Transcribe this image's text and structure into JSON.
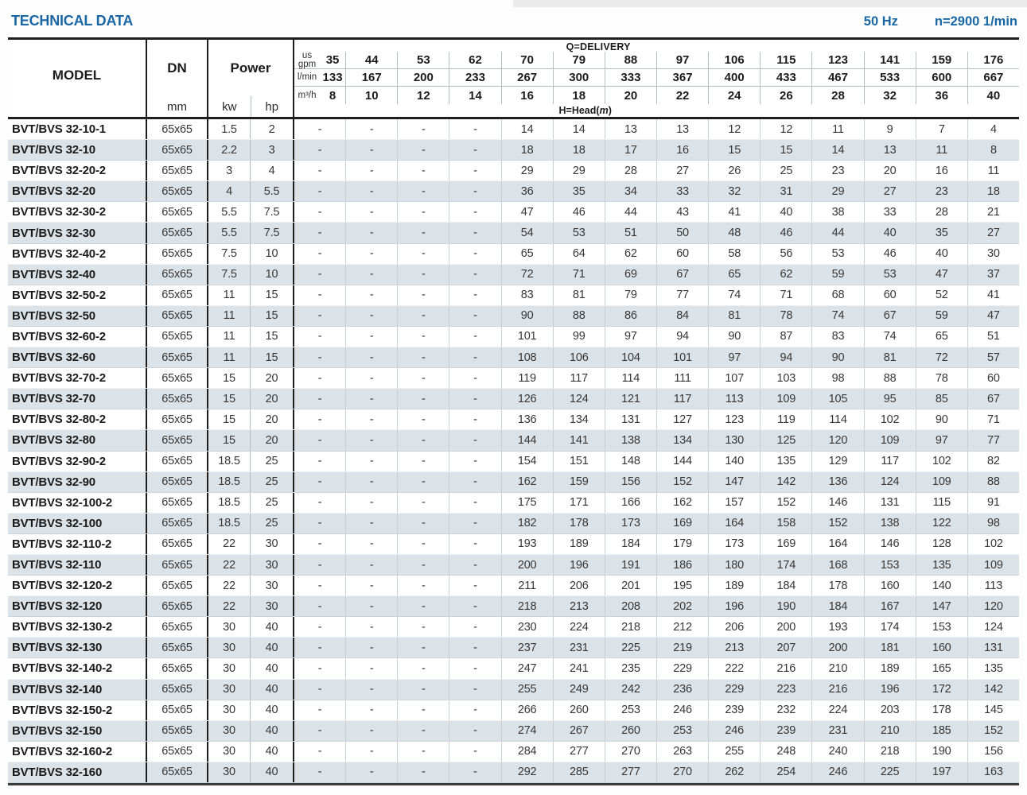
{
  "page": {
    "title": "TECHNICAL DATA",
    "frequency": "50 Hz",
    "speed": "n=2900 1/min"
  },
  "table": {
    "model_header": "MODEL",
    "dn_header": "DN",
    "dn_unit": "mm",
    "power_header": "Power",
    "power_unit_kw": "kw",
    "power_unit_hp": "hp",
    "delivery_label": "Q=DELIVERY",
    "head_label": {
      "pre": "H=Head(",
      "m": "m",
      "post": ")"
    },
    "unit_rows": [
      {
        "unit": "us gpm",
        "values": [
          "35",
          "44",
          "53",
          "62",
          "70",
          "79",
          "88",
          "97",
          "106",
          "115",
          "123",
          "141",
          "159",
          "176"
        ]
      },
      {
        "unit": "l/min",
        "values": [
          "133",
          "167",
          "200",
          "233",
          "267",
          "300",
          "333",
          "367",
          "400",
          "433",
          "467",
          "533",
          "600",
          "667"
        ]
      },
      {
        "unit": "m³/h",
        "values": [
          "8",
          "10",
          "12",
          "14",
          "16",
          "18",
          "20",
          "22",
          "24",
          "26",
          "28",
          "32",
          "36",
          "40"
        ]
      }
    ],
    "rows": [
      {
        "model": "BVT/BVS 32-10-1",
        "dn": "65x65",
        "kw": "1.5",
        "hp": "2",
        "head": [
          "-",
          "-",
          "-",
          "-",
          "14",
          "14",
          "13",
          "13",
          "12",
          "12",
          "11",
          "9",
          "7",
          "4"
        ]
      },
      {
        "model": "BVT/BVS 32-10",
        "dn": "65x65",
        "kw": "2.2",
        "hp": "3",
        "head": [
          "-",
          "-",
          "-",
          "-",
          "18",
          "18",
          "17",
          "16",
          "15",
          "15",
          "14",
          "13",
          "11",
          "8"
        ]
      },
      {
        "model": "BVT/BVS 32-20-2",
        "dn": "65x65",
        "kw": "3",
        "hp": "4",
        "head": [
          "-",
          "-",
          "-",
          "-",
          "29",
          "29",
          "28",
          "27",
          "26",
          "25",
          "23",
          "20",
          "16",
          "11"
        ]
      },
      {
        "model": "BVT/BVS 32-20",
        "dn": "65x65",
        "kw": "4",
        "hp": "5.5",
        "head": [
          "-",
          "-",
          "-",
          "-",
          "36",
          "35",
          "34",
          "33",
          "32",
          "31",
          "29",
          "27",
          "23",
          "18"
        ]
      },
      {
        "model": "BVT/BVS 32-30-2",
        "dn": "65x65",
        "kw": "5.5",
        "hp": "7.5",
        "head": [
          "-",
          "-",
          "-",
          "-",
          "47",
          "46",
          "44",
          "43",
          "41",
          "40",
          "38",
          "33",
          "28",
          "21"
        ]
      },
      {
        "model": "BVT/BVS 32-30",
        "dn": "65x65",
        "kw": "5.5",
        "hp": "7.5",
        "head": [
          "-",
          "-",
          "-",
          "-",
          "54",
          "53",
          "51",
          "50",
          "48",
          "46",
          "44",
          "40",
          "35",
          "27"
        ]
      },
      {
        "model": "BVT/BVS 32-40-2",
        "dn": "65x65",
        "kw": "7.5",
        "hp": "10",
        "head": [
          "-",
          "-",
          "-",
          "-",
          "65",
          "64",
          "62",
          "60",
          "58",
          "56",
          "53",
          "46",
          "40",
          "30"
        ]
      },
      {
        "model": "BVT/BVS 32-40",
        "dn": "65x65",
        "kw": "7.5",
        "hp": "10",
        "head": [
          "-",
          "-",
          "-",
          "-",
          "72",
          "71",
          "69",
          "67",
          "65",
          "62",
          "59",
          "53",
          "47",
          "37"
        ]
      },
      {
        "model": "BVT/BVS 32-50-2",
        "dn": "65x65",
        "kw": "11",
        "hp": "15",
        "head": [
          "-",
          "-",
          "-",
          "-",
          "83",
          "81",
          "79",
          "77",
          "74",
          "71",
          "68",
          "60",
          "52",
          "41"
        ]
      },
      {
        "model": "BVT/BVS 32-50",
        "dn": "65x65",
        "kw": "11",
        "hp": "15",
        "head": [
          "-",
          "-",
          "-",
          "-",
          "90",
          "88",
          "86",
          "84",
          "81",
          "78",
          "74",
          "67",
          "59",
          "47"
        ]
      },
      {
        "model": "BVT/BVS 32-60-2",
        "dn": "65x65",
        "kw": "11",
        "hp": "15",
        "head": [
          "-",
          "-",
          "-",
          "-",
          "101",
          "99",
          "97",
          "94",
          "90",
          "87",
          "83",
          "74",
          "65",
          "51"
        ]
      },
      {
        "model": "BVT/BVS 32-60",
        "dn": "65x65",
        "kw": "11",
        "hp": "15",
        "head": [
          "-",
          "-",
          "-",
          "-",
          "108",
          "106",
          "104",
          "101",
          "97",
          "94",
          "90",
          "81",
          "72",
          "57"
        ]
      },
      {
        "model": "BVT/BVS 32-70-2",
        "dn": "65x65",
        "kw": "15",
        "hp": "20",
        "head": [
          "-",
          "-",
          "-",
          "-",
          "119",
          "117",
          "114",
          "111",
          "107",
          "103",
          "98",
          "88",
          "78",
          "60"
        ]
      },
      {
        "model": "BVT/BVS 32-70",
        "dn": "65x65",
        "kw": "15",
        "hp": "20",
        "head": [
          "-",
          "-",
          "-",
          "-",
          "126",
          "124",
          "121",
          "117",
          "113",
          "109",
          "105",
          "95",
          "85",
          "67"
        ]
      },
      {
        "model": "BVT/BVS 32-80-2",
        "dn": "65x65",
        "kw": "15",
        "hp": "20",
        "head": [
          "-",
          "-",
          "-",
          "-",
          "136",
          "134",
          "131",
          "127",
          "123",
          "119",
          "114",
          "102",
          "90",
          "71"
        ]
      },
      {
        "model": "BVT/BVS 32-80",
        "dn": "65x65",
        "kw": "15",
        "hp": "20",
        "head": [
          "-",
          "-",
          "-",
          "-",
          "144",
          "141",
          "138",
          "134",
          "130",
          "125",
          "120",
          "109",
          "97",
          "77"
        ]
      },
      {
        "model": "BVT/BVS 32-90-2",
        "dn": "65x65",
        "kw": "18.5",
        "hp": "25",
        "head": [
          "-",
          "-",
          "-",
          "-",
          "154",
          "151",
          "148",
          "144",
          "140",
          "135",
          "129",
          "117",
          "102",
          "82"
        ]
      },
      {
        "model": "BVT/BVS 32-90",
        "dn": "65x65",
        "kw": "18.5",
        "hp": "25",
        "head": [
          "-",
          "-",
          "-",
          "-",
          "162",
          "159",
          "156",
          "152",
          "147",
          "142",
          "136",
          "124",
          "109",
          "88"
        ]
      },
      {
        "model": "BVT/BVS 32-100-2",
        "dn": "65x65",
        "kw": "18.5",
        "hp": "25",
        "head": [
          "-",
          "-",
          "-",
          "-",
          "175",
          "171",
          "166",
          "162",
          "157",
          "152",
          "146",
          "131",
          "115",
          "91"
        ]
      },
      {
        "model": "BVT/BVS 32-100",
        "dn": "65x65",
        "kw": "18.5",
        "hp": "25",
        "head": [
          "-",
          "-",
          "-",
          "-",
          "182",
          "178",
          "173",
          "169",
          "164",
          "158",
          "152",
          "138",
          "122",
          "98"
        ]
      },
      {
        "model": "BVT/BVS 32-110-2",
        "dn": "65x65",
        "kw": "22",
        "hp": "30",
        "head": [
          "-",
          "-",
          "-",
          "-",
          "193",
          "189",
          "184",
          "179",
          "173",
          "169",
          "164",
          "146",
          "128",
          "102"
        ]
      },
      {
        "model": "BVT/BVS 32-110",
        "dn": "65x65",
        "kw": "22",
        "hp": "30",
        "head": [
          "-",
          "-",
          "-",
          "-",
          "200",
          "196",
          "191",
          "186",
          "180",
          "174",
          "168",
          "153",
          "135",
          "109"
        ]
      },
      {
        "model": "BVT/BVS 32-120-2",
        "dn": "65x65",
        "kw": "22",
        "hp": "30",
        "head": [
          "-",
          "-",
          "-",
          "-",
          "211",
          "206",
          "201",
          "195",
          "189",
          "184",
          "178",
          "160",
          "140",
          "113"
        ]
      },
      {
        "model": "BVT/BVS 32-120",
        "dn": "65x65",
        "kw": "22",
        "hp": "30",
        "head": [
          "-",
          "-",
          "-",
          "-",
          "218",
          "213",
          "208",
          "202",
          "196",
          "190",
          "184",
          "167",
          "147",
          "120"
        ]
      },
      {
        "model": "BVT/BVS 32-130-2",
        "dn": "65x65",
        "kw": "30",
        "hp": "40",
        "head": [
          "-",
          "-",
          "-",
          "-",
          "230",
          "224",
          "218",
          "212",
          "206",
          "200",
          "193",
          "174",
          "153",
          "124"
        ]
      },
      {
        "model": "BVT/BVS 32-130",
        "dn": "65x65",
        "kw": "30",
        "hp": "40",
        "head": [
          "-",
          "-",
          "-",
          "-",
          "237",
          "231",
          "225",
          "219",
          "213",
          "207",
          "200",
          "181",
          "160",
          "131"
        ]
      },
      {
        "model": "BVT/BVS 32-140-2",
        "dn": "65x65",
        "kw": "30",
        "hp": "40",
        "head": [
          "-",
          "-",
          "-",
          "-",
          "247",
          "241",
          "235",
          "229",
          "222",
          "216",
          "210",
          "189",
          "165",
          "135"
        ]
      },
      {
        "model": "BVT/BVS 32-140",
        "dn": "65x65",
        "kw": "30",
        "hp": "40",
        "head": [
          "-",
          "-",
          "-",
          "-",
          "255",
          "249",
          "242",
          "236",
          "229",
          "223",
          "216",
          "196",
          "172",
          "142"
        ]
      },
      {
        "model": "BVT/BVS 32-150-2",
        "dn": "65x65",
        "kw": "30",
        "hp": "40",
        "head": [
          "-",
          "-",
          "-",
          "-",
          "266",
          "260",
          "253",
          "246",
          "239",
          "232",
          "224",
          "203",
          "178",
          "145"
        ]
      },
      {
        "model": "BVT/BVS 32-150",
        "dn": "65x65",
        "kw": "30",
        "hp": "40",
        "head": [
          "-",
          "-",
          "-",
          "-",
          "274",
          "267",
          "260",
          "253",
          "246",
          "239",
          "231",
          "210",
          "185",
          "152"
        ]
      },
      {
        "model": "BVT/BVS 32-160-2",
        "dn": "65x65",
        "kw": "30",
        "hp": "40",
        "head": [
          "-",
          "-",
          "-",
          "-",
          "284",
          "277",
          "270",
          "263",
          "255",
          "248",
          "240",
          "218",
          "190",
          "156"
        ]
      },
      {
        "model": "BVT/BVS 32-160",
        "dn": "65x65",
        "kw": "30",
        "hp": "40",
        "head": [
          "-",
          "-",
          "-",
          "-",
          "292",
          "285",
          "277",
          "270",
          "262",
          "254",
          "246",
          "225",
          "197",
          "163"
        ]
      }
    ]
  }
}
